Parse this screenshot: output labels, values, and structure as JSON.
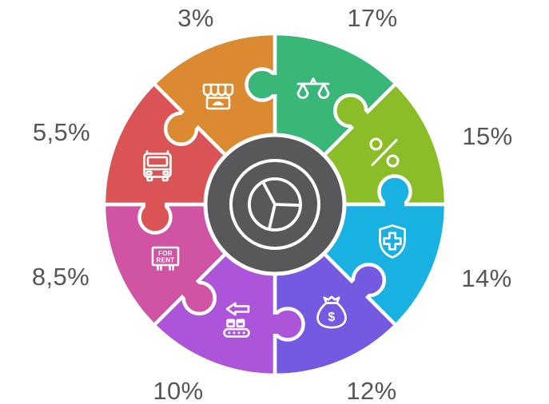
{
  "background_color": "#ffffff",
  "chart_data": {
    "type": "pie",
    "variant": "puzzle-piece donut infographic, 8 interlocking segments around a dark hub",
    "title": "",
    "legend_position": "labels around outside of ring",
    "grid": false,
    "separator_color": "#ffffff",
    "label_color": "#54565a",
    "center": {
      "icon": "pie-chart-icon",
      "color": "#58585a"
    },
    "total_of_labels": 85,
    "segments": [
      {
        "label": "17%",
        "value": 17,
        "color": "#38b778",
        "icon": "scales-icon",
        "a1": 90,
        "a2": 45,
        "label_x": 466,
        "label_y": 23
      },
      {
        "label": "15%",
        "value": 15,
        "color": "#8bbd29",
        "icon": "percent-icon",
        "a1": 45,
        "a2": 0,
        "label_x": 610,
        "label_y": 171
      },
      {
        "label": "14%",
        "value": 14,
        "color": "#18b1e2",
        "icon": "shield-cross-icon",
        "a1": 0,
        "a2": -45,
        "label_x": 609,
        "label_y": 349
      },
      {
        "label": "12%",
        "value": 12,
        "color": "#7659e1",
        "icon": "money-bag-icon",
        "a1": -45,
        "a2": -90,
        "label_x": 465,
        "label_y": 490
      },
      {
        "label": "10%",
        "value": 10,
        "color": "#ad55da",
        "icon": "conveyor-icon",
        "a1": -90,
        "a2": -135,
        "label_x": 223,
        "label_y": 490
      },
      {
        "label": "8,5%",
        "value": 8.5,
        "color": "#d153a3",
        "icon": "for-rent-icon",
        "a1": -135,
        "a2": -180,
        "label_x": 76,
        "label_y": 347
      },
      {
        "label": "5,5%",
        "value": 5.5,
        "color": "#db5455",
        "icon": "bus-icon",
        "a1": 180,
        "a2": 135,
        "label_x": 77,
        "label_y": 166
      },
      {
        "label": "3%",
        "value": 3,
        "color": "#dc8a32",
        "icon": "store-icon",
        "a1": 135,
        "a2": 90,
        "label_x": 245,
        "label_y": 23
      }
    ],
    "icon_texts": {
      "for_rent_line1": "FOR",
      "for_rent_line2": "RENT",
      "dollar": "$"
    }
  }
}
